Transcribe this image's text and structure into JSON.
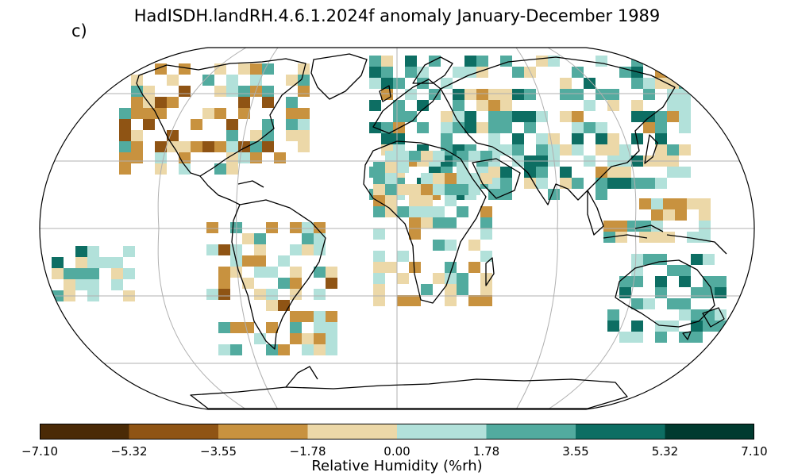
{
  "title": "HadISDH.landRH.4.6.1.2024f anomaly January-December 1989",
  "panel_label": "c)",
  "colorbar": {
    "label": "Relative Humidity (%rh)",
    "ticks": [
      "−7.10",
      "−5.32",
      "−3.55",
      "−1.78",
      "0.00",
      "1.78",
      "3.55",
      "5.32",
      "7.10"
    ],
    "colors": [
      "#4a2a06",
      "#8f5414",
      "#c8923f",
      "#ecd8a8",
      "#b2e1da",
      "#52ab9f",
      "#0d6e63",
      "#003a2f"
    ]
  },
  "map": {
    "projection": "Robinson",
    "graticule": true,
    "coastlines": true,
    "variable": "Relative Humidity anomaly",
    "units": "%rh"
  }
}
